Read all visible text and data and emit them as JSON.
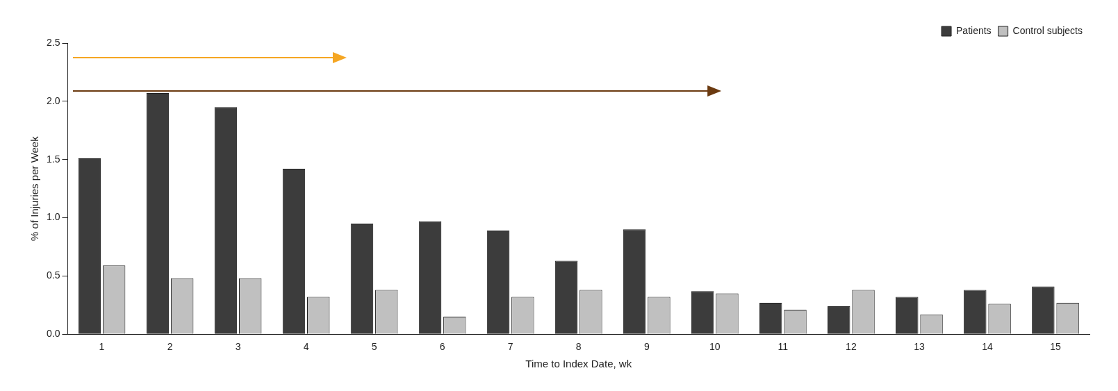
{
  "chart_data": {
    "type": "bar",
    "xlabel": "Time to Index Date, wk",
    "ylabel": "% of Injuries per Week",
    "categories": [
      "1",
      "2",
      "3",
      "4",
      "5",
      "6",
      "7",
      "8",
      "9",
      "10",
      "11",
      "12",
      "13",
      "14",
      "15"
    ],
    "series": [
      {
        "name": "Patients",
        "color": "#3c3c3c",
        "values": [
          1.51,
          2.07,
          1.95,
          1.42,
          0.95,
          0.97,
          0.89,
          0.63,
          0.9,
          0.37,
          0.27,
          0.24,
          0.32,
          0.38,
          0.41
        ]
      },
      {
        "name": "Control subjects",
        "color": "#c0c0c0",
        "values": [
          0.59,
          0.48,
          0.48,
          0.32,
          0.38,
          0.15,
          0.32,
          0.38,
          0.32,
          0.35,
          0.21,
          0.38,
          0.17,
          0.26,
          0.27
        ]
      }
    ],
    "ylim": [
      0,
      2.5
    ],
    "yticks": [
      {
        "value": 0,
        "label": "0.0"
      },
      {
        "value": 0.5,
        "label": "0.5"
      },
      {
        "value": 1,
        "label": "1.0"
      },
      {
        "value": 1.5,
        "label": "1.5"
      },
      {
        "value": 2,
        "label": "2.0"
      },
      2.5
    ],
    "grid": false,
    "legend": "top right"
  }
}
